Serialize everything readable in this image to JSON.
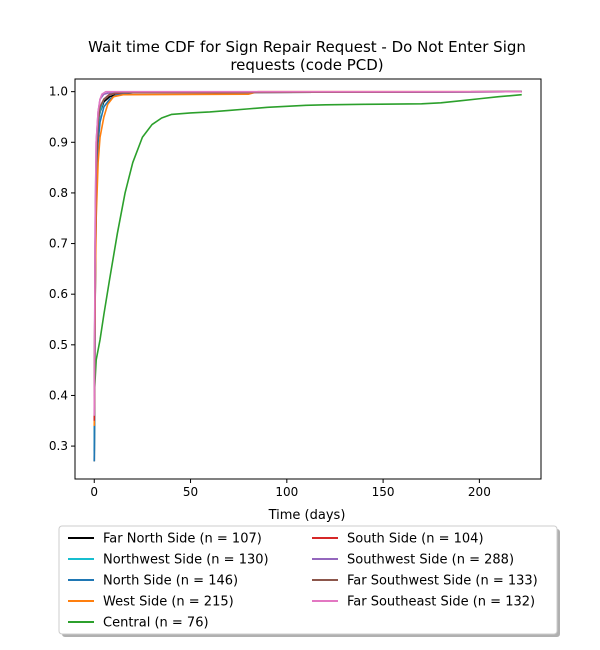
{
  "chart_data": {
    "type": "line",
    "title": "Wait time CDF for Sign Repair Request - Do Not Enter Sign",
    "title_line2": "requests (code PCD)",
    "xlabel": "Time (days)",
    "ylabel": "",
    "xlim": [
      -10,
      232
    ],
    "ylim": [
      0.235,
      1.025
    ],
    "x_ticks": [
      0,
      50,
      100,
      150,
      200
    ],
    "y_ticks": [
      0.3,
      0.4,
      0.5,
      0.6,
      0.7,
      0.8,
      0.9,
      1.0
    ],
    "x_tick_labels": [
      "0",
      "50",
      "100",
      "150",
      "200"
    ],
    "y_tick_labels": [
      "0.3",
      "0.4",
      "0.5",
      "0.6",
      "0.7",
      "0.8",
      "0.9",
      "1.0"
    ],
    "grid": false,
    "legend_position": "below-center",
    "series": [
      {
        "name": "Far North Side (n = 107)",
        "color": "#000000",
        "points": [
          [
            0,
            0.27
          ],
          [
            0.5,
            0.6
          ],
          [
            1,
            0.84
          ],
          [
            2,
            0.93
          ],
          [
            3,
            0.96
          ],
          [
            5,
            0.98
          ],
          [
            8,
            0.99
          ],
          [
            12,
            0.995
          ],
          [
            20,
            0.998
          ],
          [
            222,
            1.0
          ]
        ]
      },
      {
        "name": "Northwest Side (n = 130)",
        "color": "#17becf",
        "points": [
          [
            0,
            0.29
          ],
          [
            0.5,
            0.65
          ],
          [
            1,
            0.85
          ],
          [
            2,
            0.93
          ],
          [
            3,
            0.96
          ],
          [
            5,
            0.985
          ],
          [
            8,
            0.995
          ],
          [
            15,
            0.998
          ],
          [
            222,
            1.0
          ]
        ]
      },
      {
        "name": "North Side (n = 146)",
        "color": "#1f77b4",
        "points": [
          [
            0,
            0.27
          ],
          [
            0.5,
            0.6
          ],
          [
            1,
            0.8
          ],
          [
            2,
            0.9
          ],
          [
            3,
            0.94
          ],
          [
            5,
            0.97
          ],
          [
            8,
            0.985
          ],
          [
            12,
            0.995
          ],
          [
            20,
            0.998
          ],
          [
            222,
            1.0
          ]
        ]
      },
      {
        "name": "West Side (n = 215)",
        "color": "#ff7f0e",
        "points": [
          [
            0,
            0.34
          ],
          [
            0.5,
            0.6
          ],
          [
            1,
            0.75
          ],
          [
            2,
            0.86
          ],
          [
            3,
            0.91
          ],
          [
            5,
            0.95
          ],
          [
            7,
            0.975
          ],
          [
            10,
            0.99
          ],
          [
            15,
            0.994
          ],
          [
            80,
            0.995
          ],
          [
            85,
            1.0
          ],
          [
            222,
            1.0
          ]
        ]
      },
      {
        "name": "Central (n = 76)",
        "color": "#2ca02c",
        "points": [
          [
            0,
            0.4
          ],
          [
            1,
            0.47
          ],
          [
            3,
            0.51
          ],
          [
            5,
            0.56
          ],
          [
            8,
            0.63
          ],
          [
            12,
            0.72
          ],
          [
            16,
            0.8
          ],
          [
            20,
            0.86
          ],
          [
            25,
            0.91
          ],
          [
            30,
            0.935
          ],
          [
            35,
            0.948
          ],
          [
            40,
            0.955
          ],
          [
            50,
            0.958
          ],
          [
            60,
            0.96
          ],
          [
            70,
            0.963
          ],
          [
            80,
            0.966
          ],
          [
            90,
            0.969
          ],
          [
            100,
            0.971
          ],
          [
            110,
            0.973
          ],
          [
            120,
            0.974
          ],
          [
            140,
            0.975
          ],
          [
            170,
            0.976
          ],
          [
            180,
            0.978
          ],
          [
            190,
            0.982
          ],
          [
            200,
            0.986
          ],
          [
            210,
            0.99
          ],
          [
            222,
            0.994
          ]
        ]
      },
      {
        "name": "South Side (n = 104)",
        "color": "#d62728",
        "points": [
          [
            0,
            0.35
          ],
          [
            0.5,
            0.7
          ],
          [
            1,
            0.86
          ],
          [
            2,
            0.94
          ],
          [
            3,
            0.97
          ],
          [
            5,
            0.985
          ],
          [
            8,
            0.995
          ],
          [
            15,
            0.998
          ],
          [
            222,
            1.0
          ]
        ]
      },
      {
        "name": "Southwest Side (n = 288)",
        "color": "#9467bd",
        "points": [
          [
            0,
            0.37
          ],
          [
            0.5,
            0.75
          ],
          [
            1,
            0.9
          ],
          [
            2,
            0.96
          ],
          [
            3,
            0.985
          ],
          [
            5,
            0.995
          ],
          [
            8,
            0.998
          ],
          [
            222,
            1.0
          ]
        ]
      },
      {
        "name": "Far Southwest Side (n = 133)",
        "color": "#8c564b",
        "points": [
          [
            0,
            0.36
          ],
          [
            0.5,
            0.7
          ],
          [
            1,
            0.86
          ],
          [
            2,
            0.94
          ],
          [
            3,
            0.97
          ],
          [
            5,
            0.985
          ],
          [
            8,
            0.994
          ],
          [
            12,
            0.998
          ],
          [
            222,
            1.0
          ]
        ]
      },
      {
        "name": "Far Southeast Side (n = 132)",
        "color": "#e377c2",
        "points": [
          [
            0,
            0.36
          ],
          [
            0.5,
            0.74
          ],
          [
            1,
            0.9
          ],
          [
            2,
            0.96
          ],
          [
            3,
            0.985
          ],
          [
            4,
            0.995
          ],
          [
            6,
            1.0
          ],
          [
            222,
            1.0
          ]
        ]
      }
    ]
  }
}
